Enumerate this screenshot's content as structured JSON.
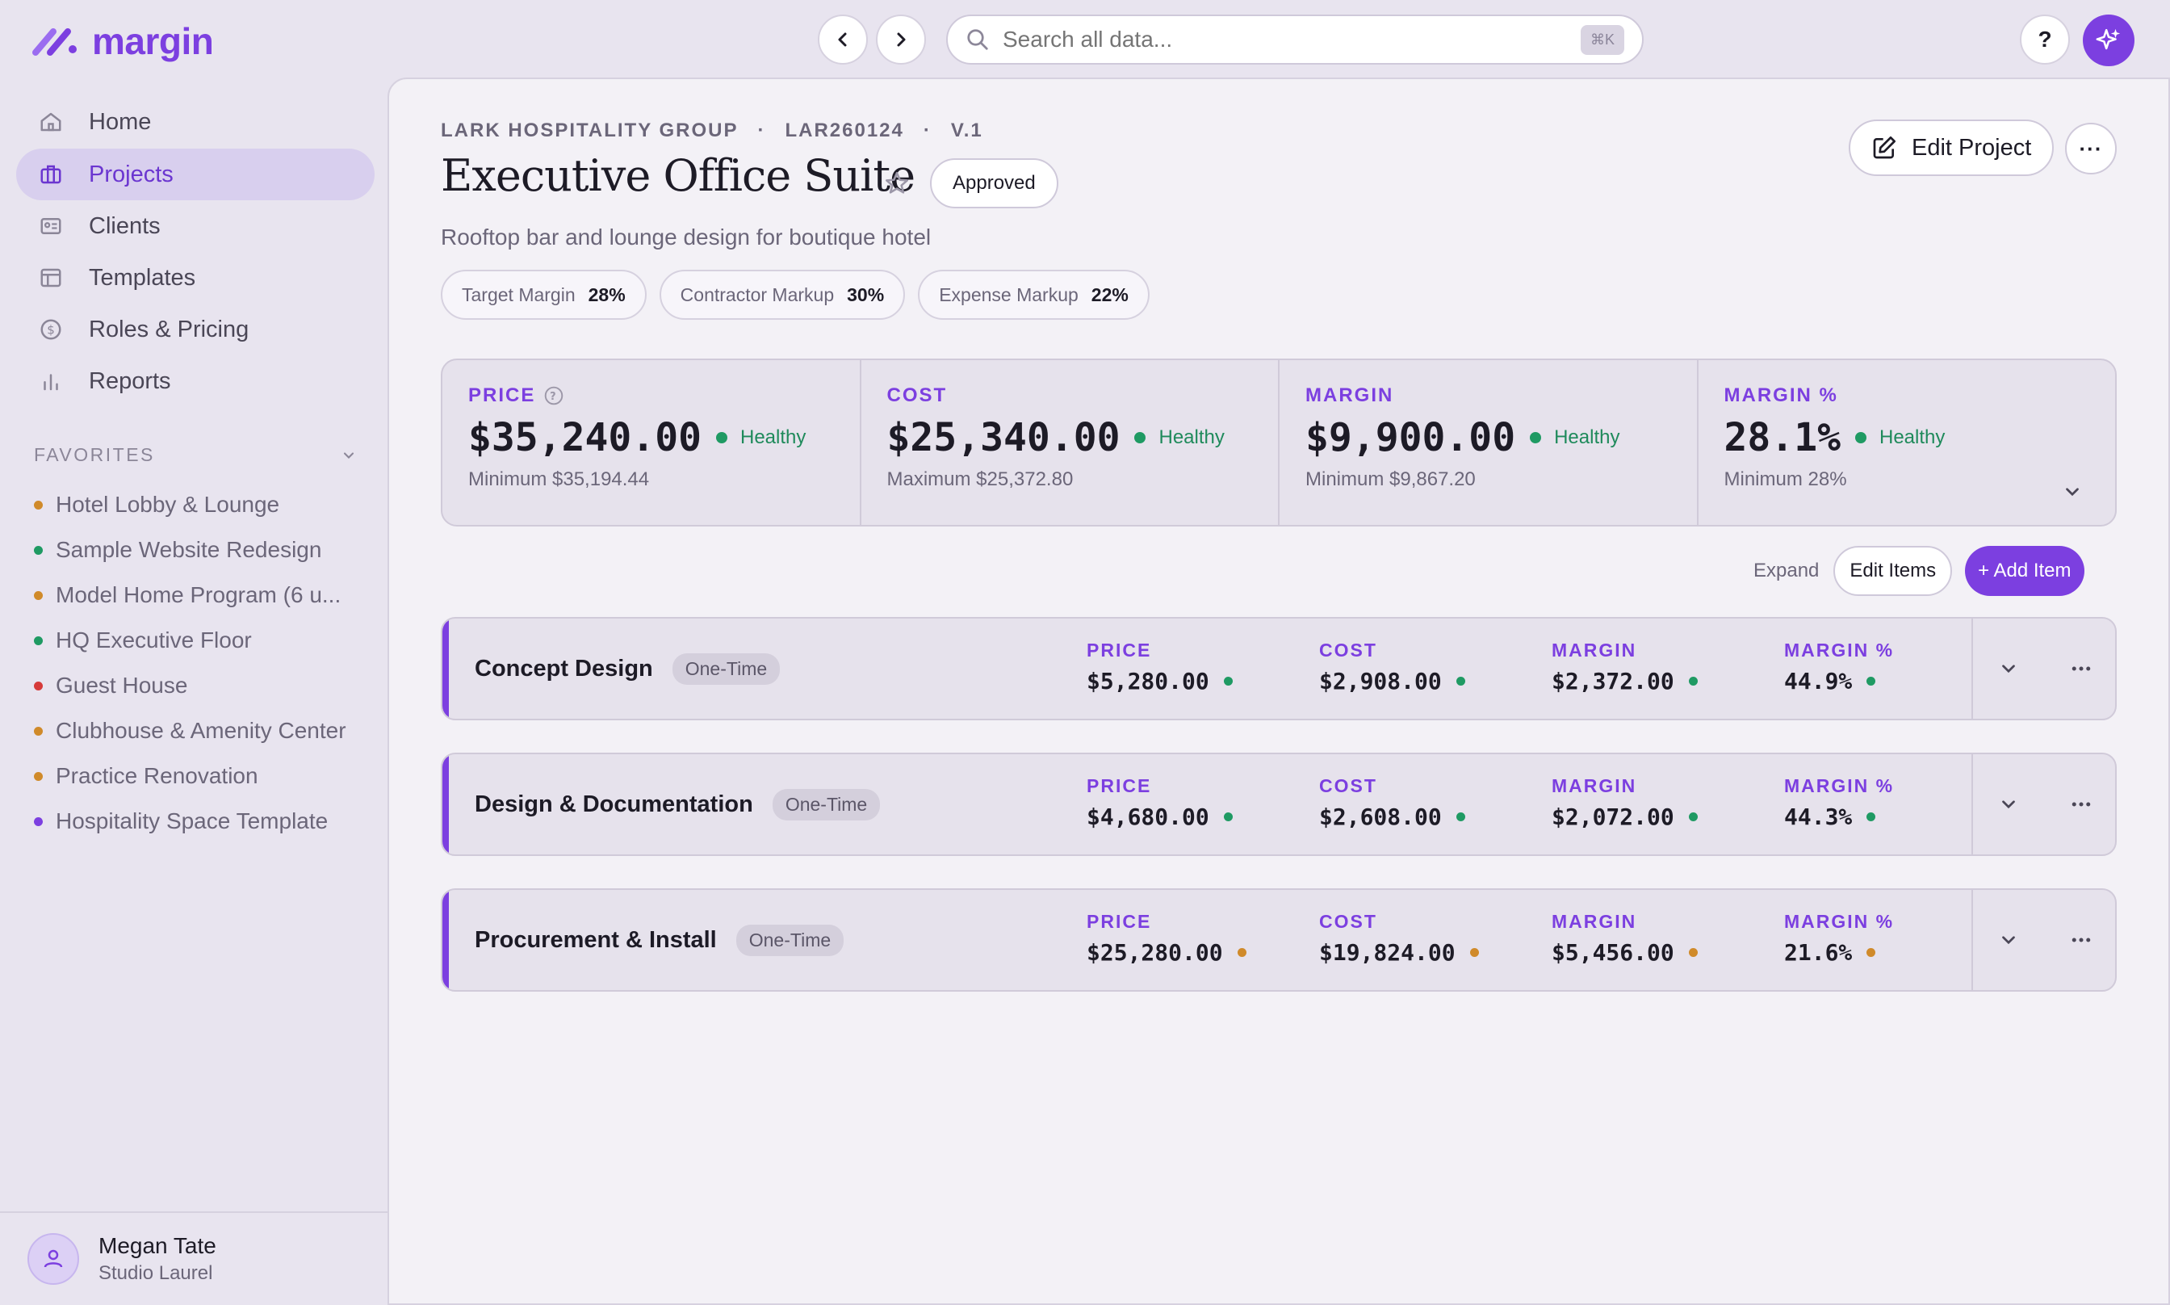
{
  "app": {
    "logo_text": "margin",
    "brand_color": "#7c3fe0"
  },
  "search": {
    "placeholder": "Search all data...",
    "shortcut": "⌘K"
  },
  "help_label": "?",
  "sidebar": {
    "items": [
      {
        "label": "Home",
        "icon": "home-icon"
      },
      {
        "label": "Projects",
        "icon": "briefcase-icon",
        "active": true
      },
      {
        "label": "Clients",
        "icon": "contact-card-icon"
      },
      {
        "label": "Templates",
        "icon": "layout-icon"
      },
      {
        "label": "Roles & Pricing",
        "icon": "dollar-circle-icon"
      },
      {
        "label": "Reports",
        "icon": "bar-chart-icon"
      }
    ],
    "favorites_title": "FAVORITES",
    "favorites": [
      {
        "label": "Hotel Lobby & Lounge",
        "color": "#d08a2a"
      },
      {
        "label": "Sample Website Redesign",
        "color": "#1f9a63"
      },
      {
        "label": "Model Home Program (6 u...",
        "color": "#d08a2a"
      },
      {
        "label": "HQ Executive Floor",
        "color": "#1f9a63"
      },
      {
        "label": "Guest House",
        "color": "#d63a3a"
      },
      {
        "label": "Clubhouse & Amenity Center",
        "color": "#d08a2a"
      },
      {
        "label": "Practice Renovation",
        "color": "#d08a2a"
      },
      {
        "label": "Hospitality Space Template",
        "color": "#7c3fe0"
      }
    ],
    "user": {
      "name": "Megan Tate",
      "org": "Studio Laurel"
    }
  },
  "project": {
    "client": "LARK HOSPITALITY GROUP",
    "code": "LAR260124",
    "version": "V.1",
    "separator": "·",
    "title": "Executive Office Suite",
    "status": "Approved",
    "description": "Rooftop bar and lounge design for boutique hotel",
    "chips": [
      {
        "label": "Target Margin",
        "value": "28%"
      },
      {
        "label": "Contractor Markup",
        "value": "30%"
      },
      {
        "label": "Expense Markup",
        "value": "22%"
      }
    ],
    "edit_label": "Edit Project",
    "more_label": "···"
  },
  "summary": [
    {
      "label": "PRICE",
      "value": "$35,240.00",
      "health": "Healthy",
      "sub": "Minimum $35,194.44"
    },
    {
      "label": "COST",
      "value": "$25,340.00",
      "health": "Healthy",
      "sub": "Maximum $25,372.80"
    },
    {
      "label": "MARGIN",
      "value": "$9,900.00",
      "health": "Healthy",
      "sub": "Minimum $9,867.20"
    },
    {
      "label": "MARGIN %",
      "value": "28.1%",
      "health": "Healthy",
      "sub": "Minimum 28%"
    }
  ],
  "actions": {
    "expand": "Expand",
    "edit_items": "Edit Items",
    "add_item": "+ Add Item"
  },
  "col_labels": [
    "PRICE",
    "COST",
    "MARGIN",
    "MARGIN %"
  ],
  "items": [
    {
      "name": "Concept Design",
      "badge": "One-Time",
      "values": [
        "$5,280.00",
        "$2,908.00",
        "$2,372.00",
        "44.9%"
      ],
      "status_color": "#1f9a63"
    },
    {
      "name": "Design & Documentation",
      "badge": "One-Time",
      "values": [
        "$4,680.00",
        "$2,608.00",
        "$2,072.00",
        "44.3%"
      ],
      "status_color": "#1f9a63"
    },
    {
      "name": "Procurement & Install",
      "badge": "One-Time",
      "values": [
        "$25,280.00",
        "$19,824.00",
        "$5,456.00",
        "21.6%"
      ],
      "status_color": "#d08a2a"
    }
  ]
}
